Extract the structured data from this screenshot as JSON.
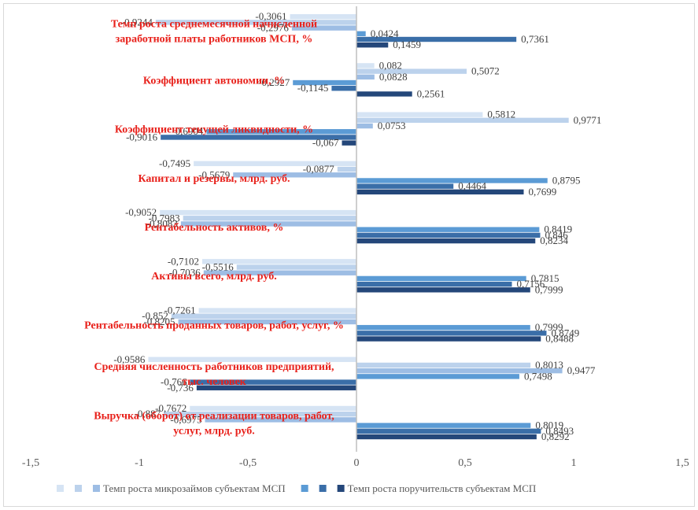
{
  "chart_data": {
    "type": "bar",
    "orientation": "horizontal",
    "xlim": [
      -1.5,
      1.5
    ],
    "x_ticks": [
      "-1,5",
      "-1",
      "-0,5",
      "0",
      "0,5",
      "1",
      "1,5"
    ],
    "categories": [
      "Темп роста среднемесячной начисленной заработной платы работников МСП, %",
      "Коэффициент автономии, %",
      "Коэффициент текущей ликвидности, %",
      "Капитал и резервы, млрд. руб.",
      "Рентабельность активов, %",
      "Активы всего, млрд. руб.",
      "Рентабельность проданных товаров, работ, услуг, %",
      "Средняя численность работников предприятий, тыс. человек",
      "Выручка (оборот) от реализации товаров, работ, услуг, млрд. руб."
    ],
    "series": [
      {
        "name": "",
        "color": "#d6e4f4",
        "values": [
          -0.3061,
          0.082,
          0.5812,
          -0.7495,
          -0.9052,
          -0.7102,
          -0.7261,
          -0.9586,
          -0.7672
        ]
      },
      {
        "name": "",
        "color": "#bcd2ec",
        "values": [
          -0.9244,
          0.5072,
          0.9771,
          -0.0877,
          -0.7983,
          -0.5516,
          -0.852,
          0.8013,
          -0.887
        ]
      },
      {
        "name": "Темп роста микрозаймов субъектам МСП",
        "color": "#9dbde4",
        "values": [
          -0.2976,
          0.0828,
          0.0753,
          -0.5679,
          -0.8083,
          -0.7036,
          -0.8205,
          0.9477,
          -0.6975
        ]
      },
      {
        "name": "",
        "color": "#5b9bd5",
        "values": [
          0.0424,
          -0.2927,
          -0.6904,
          0.8795,
          0.8419,
          0.7815,
          0.7999,
          0.7498,
          0.8019
        ]
      },
      {
        "name": "",
        "color": "#3a6ea8",
        "values": [
          0.7361,
          -0.1145,
          -0.9016,
          0.4464,
          0.846,
          0.7156,
          0.8749,
          -0.766,
          0.8493
        ]
      },
      {
        "name": "Темп роста поручительств субъектам МСП",
        "color": "#24477a",
        "values": [
          0.1459,
          0.2561,
          -0.067,
          0.7699,
          0.8234,
          0.7999,
          0.8488,
          -0.736,
          0.8292
        ]
      }
    ],
    "legend": {
      "position": "bottom",
      "entries": [
        "Темп роста микрозаймов субъектам МСП",
        "Темп роста поручительств субъектам МСП"
      ]
    }
  }
}
